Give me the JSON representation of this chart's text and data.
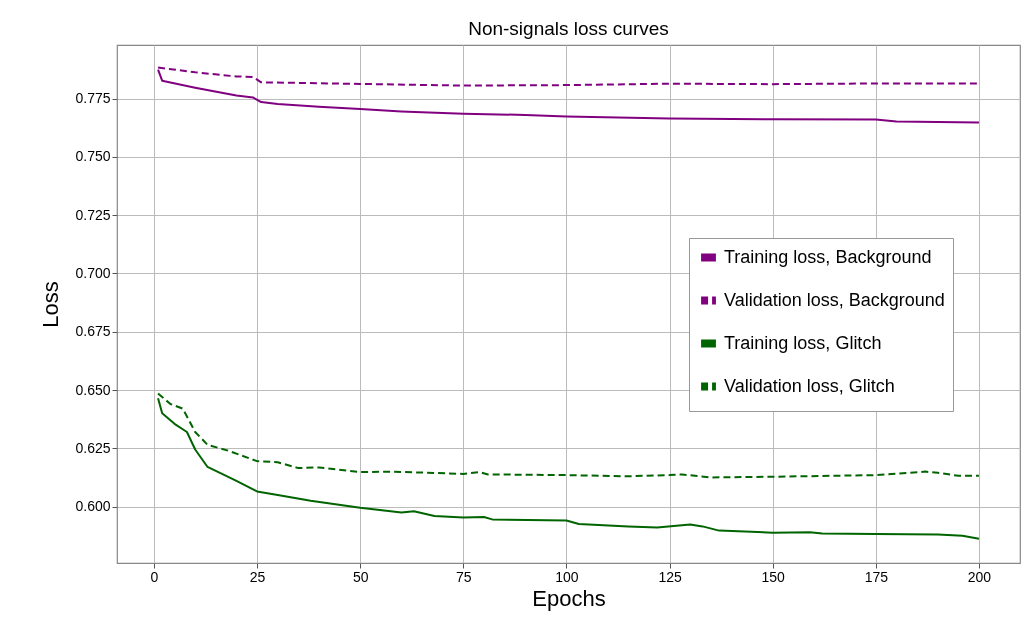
{
  "chart_data": {
    "type": "line",
    "title": "Non-signals loss curves",
    "xlabel": "Epochs",
    "ylabel": "Loss",
    "xlim": [
      -8.95,
      209.95
    ],
    "ylim": [
      0.5758,
      0.798
    ],
    "xticks": [
      0,
      25,
      50,
      75,
      100,
      125,
      150,
      175,
      200
    ],
    "yticks": [
      {
        "value": 0.6,
        "label": "0.600"
      },
      {
        "value": 0.625,
        "label": "0.625"
      },
      {
        "value": 0.65,
        "label": "0.650"
      },
      {
        "value": 0.675,
        "label": "0.675"
      },
      {
        "value": 0.7,
        "label": "0.700"
      },
      {
        "value": 0.725,
        "label": "0.725"
      },
      {
        "value": 0.75,
        "label": "0.750"
      },
      {
        "value": 0.775,
        "label": "0.775"
      }
    ],
    "grid": true,
    "legend": "right",
    "series": [
      {
        "name": "Training loss, Background",
        "color": "#800080",
        "line_style": "solid",
        "x": [
          1,
          2,
          10,
          20,
          24,
          26,
          30,
          40,
          50,
          60,
          75,
          90,
          100,
          125,
          150,
          175,
          180,
          200
        ],
        "values": [
          0.7874,
          0.7827,
          0.7797,
          0.7763,
          0.7755,
          0.7735,
          0.7727,
          0.7715,
          0.7705,
          0.7695,
          0.7685,
          0.768,
          0.7673,
          0.7665,
          0.7661,
          0.766,
          0.7652,
          0.7648
        ]
      },
      {
        "name": "Validation loss, Background",
        "color": "#800080",
        "line_style": "dashed",
        "x": [
          1,
          10,
          20,
          24,
          26,
          50,
          75,
          100,
          125,
          150,
          175,
          200
        ],
        "values": [
          0.7883,
          0.7863,
          0.7845,
          0.7843,
          0.782,
          0.7813,
          0.7806,
          0.7808,
          0.7814,
          0.7812,
          0.7815,
          0.7815
        ]
      },
      {
        "name": "Training loss, Glitch",
        "color": "#006400",
        "line_style": "solid",
        "x": [
          1,
          2,
          5,
          8,
          10,
          13,
          20,
          25,
          30,
          38,
          50,
          60,
          63,
          68,
          75,
          80,
          82,
          100,
          103,
          115,
          122,
          130,
          133,
          137,
          150,
          159,
          162,
          175,
          190,
          196,
          200
        ],
        "values": [
          0.6465,
          0.64,
          0.6355,
          0.632,
          0.6245,
          0.617,
          0.611,
          0.6065,
          0.605,
          0.6025,
          0.5995,
          0.5975,
          0.598,
          0.596,
          0.5953,
          0.5955,
          0.5945,
          0.594,
          0.5925,
          0.5915,
          0.591,
          0.5923,
          0.5915,
          0.5897,
          0.5888,
          0.589,
          0.5885,
          0.5882,
          0.588,
          0.5875,
          0.5862
        ]
      },
      {
        "name": "Validation loss, Glitch",
        "color": "#006400",
        "line_style": "dashed",
        "x": [
          1,
          4,
          7,
          10,
          13,
          18,
          25,
          30,
          35,
          40,
          50,
          58,
          75,
          79,
          81,
          100,
          115,
          125,
          128,
          135,
          150,
          175,
          187,
          190,
          195,
          200
        ],
        "values": [
          0.6485,
          0.644,
          0.642,
          0.632,
          0.6265,
          0.624,
          0.6195,
          0.619,
          0.6165,
          0.6168,
          0.6148,
          0.615,
          0.614,
          0.6148,
          0.6138,
          0.6135,
          0.613,
          0.6135,
          0.6138,
          0.6125,
          0.6128,
          0.6135,
          0.615,
          0.6145,
          0.6132,
          0.6132
        ]
      }
    ]
  }
}
